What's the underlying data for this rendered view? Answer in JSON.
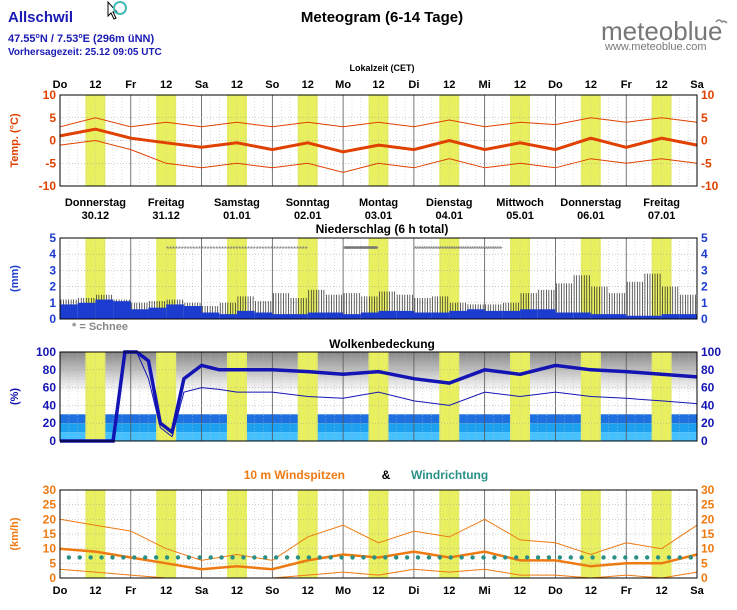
{
  "header": {
    "location": "Allschwil",
    "coords_lat": "47.55",
    "coords_lat_dir": "N",
    "coords_sep": " / ",
    "coords_lon": "7.53",
    "coords_lon_dir": "E",
    "coords_alt": " (296m üNN)",
    "deg": "o",
    "forecast_time": "Vorhersagezeit: 25.12 09:05 UTC",
    "title": "Meteogram (6-14 Tage)",
    "brand": "meteoblue",
    "brand_url": "www.meteoblue.com",
    "timezone_label": "Lokalzeit (CET)"
  },
  "colors": {
    "day_band": "#e8f060",
    "temp_line": "#e04000",
    "precip": "#1c3cd0",
    "cloud_line": "#1414b4",
    "wind_line": "#ee7a12",
    "wind_dir": "#2a9086",
    "title_blue": "#1a1ab4"
  },
  "time_axis": {
    "ticks": [
      "Do",
      "12",
      "Fr",
      "12",
      "Sa",
      "12",
      "So",
      "12",
      "Mo",
      "12",
      "Di",
      "12",
      "Mi",
      "12",
      "Do",
      "12",
      "Fr",
      "12",
      "Sa"
    ]
  },
  "days": [
    {
      "name": "Donnerstag",
      "date": "30.12"
    },
    {
      "name": "Freitag",
      "date": "31.12"
    },
    {
      "name": "Samstag",
      "date": "01.01"
    },
    {
      "name": "Sonntag",
      "date": "02.01"
    },
    {
      "name": "Montag",
      "date": "03.01"
    },
    {
      "name": "Dienstag",
      "date": "04.01"
    },
    {
      "name": "Mittwoch",
      "date": "05.01"
    },
    {
      "name": "Donnerstag",
      "date": "06.01"
    },
    {
      "name": "Freitag",
      "date": "07.01"
    }
  ],
  "chart_data": [
    {
      "type": "line",
      "name": "temperature",
      "ylabel": "Temp. (°C)",
      "ylim": [
        -10,
        10
      ],
      "yticks": [
        "10",
        "5",
        "0",
        "-5",
        "-10"
      ],
      "x_hours": [
        0,
        12,
        24,
        36,
        48,
        60,
        72,
        84,
        96,
        108,
        120,
        132,
        144,
        156,
        168,
        180,
        192,
        204,
        216
      ],
      "main": [
        1,
        2.5,
        0.5,
        -0.5,
        -1.5,
        -0.5,
        -2,
        -0.5,
        -2.5,
        -1,
        -2,
        0,
        -2,
        -0.5,
        -2,
        0.5,
        -1.5,
        0.5,
        -1
      ],
      "upper": [
        3,
        5,
        3,
        4,
        3,
        4,
        3,
        4,
        3,
        4,
        3,
        4.5,
        3,
        4,
        3.5,
        5,
        4,
        5,
        4
      ],
      "lower": [
        -1,
        0,
        -2,
        -5,
        -6,
        -5,
        -6,
        -5,
        -7,
        -5,
        -6,
        -4,
        -6,
        -5,
        -6,
        -4,
        -5,
        -4,
        -5
      ],
      "min_max_band": [
        -10,
        10
      ]
    },
    {
      "type": "bar",
      "name": "precipitation",
      "title": "Niederschlag (6 h total)",
      "ylabel": "(mm)",
      "ylim": [
        0,
        5
      ],
      "yticks": [
        "5",
        "4",
        "3",
        "2",
        "1",
        "0"
      ],
      "snow_note": "* = Schnee",
      "values_mean": [
        0.9,
        1.0,
        1.2,
        1.1,
        0.6,
        0.7,
        0.9,
        0.8,
        0.4,
        0.3,
        0.5,
        0.4,
        0.3,
        0.3,
        0.4,
        0.4,
        0.3,
        0.4,
        0.5,
        0.5,
        0.4,
        0.4,
        0.5,
        0.6,
        0.5,
        0.5,
        0.6,
        0.6,
        0.4,
        0.4,
        0.3,
        0.3,
        0.2,
        0.2,
        0.3,
        0.3
      ],
      "values_spread": [
        1.2,
        1.3,
        1.5,
        1.2,
        1.0,
        1.1,
        1.2,
        1.0,
        0.8,
        1.0,
        1.4,
        1.1,
        1.6,
        1.3,
        1.8,
        1.5,
        1.6,
        1.4,
        1.7,
        1.5,
        1.3,
        1.4,
        1.0,
        0.9,
        0.9,
        1.0,
        1.6,
        1.8,
        2.2,
        2.7,
        2.0,
        1.6,
        2.3,
        2.8,
        2.0,
        1.5
      ],
      "snow_spans": [
        [
          36,
          84
        ],
        [
          96,
          108
        ],
        [
          120,
          150
        ]
      ]
    },
    {
      "type": "line",
      "name": "cloud cover",
      "title": "Wolkenbedeckung",
      "ylabel": "(%)",
      "ylim": [
        0,
        100
      ],
      "yticks": [
        "100",
        "80",
        "60",
        "40",
        "20",
        "0"
      ],
      "x_hours": [
        0,
        6,
        10,
        14,
        18,
        22,
        26,
        30,
        34,
        38,
        42,
        48,
        54,
        60,
        72,
        84,
        96,
        108,
        120,
        132,
        144,
        156,
        168,
        180,
        192,
        204,
        216
      ],
      "total": [
        0,
        0,
        0,
        0,
        0,
        100,
        100,
        90,
        20,
        10,
        70,
        85,
        80,
        80,
        80,
        78,
        75,
        78,
        70,
        65,
        80,
        75,
        85,
        80,
        78,
        75,
        72
      ],
      "high": [
        0,
        0,
        0,
        0,
        0,
        100,
        100,
        70,
        15,
        5,
        55,
        60,
        58,
        55,
        55,
        50,
        48,
        55,
        45,
        40,
        55,
        50,
        55,
        50,
        48,
        45,
        42
      ],
      "low_band": [
        30,
        30,
        30,
        30,
        30,
        30,
        30,
        30,
        30,
        30,
        30,
        30,
        30,
        30,
        30,
        30,
        30,
        30,
        30,
        30,
        30,
        30,
        30,
        30,
        30,
        30,
        30
      ]
    },
    {
      "type": "line",
      "name": "wind",
      "title_gust": "10 m Windspitzen",
      "title_amp": "&",
      "title_dir": "Windrichtung",
      "ylabel": "(km/h)",
      "ylim": [
        0,
        30
      ],
      "yticks": [
        "30",
        "25",
        "20",
        "15",
        "10",
        "5",
        "0"
      ],
      "x_hours": [
        0,
        12,
        24,
        36,
        48,
        60,
        72,
        84,
        96,
        108,
        120,
        132,
        144,
        156,
        168,
        180,
        192,
        204,
        216
      ],
      "gust_upper": [
        20,
        18,
        16,
        10,
        6,
        8,
        6,
        14,
        18,
        12,
        16,
        14,
        20,
        13,
        12,
        8,
        12,
        10,
        18
      ],
      "gust_mid": [
        10,
        9,
        7,
        5,
        3,
        4,
        3,
        6,
        8,
        7,
        9,
        7,
        9,
        6,
        6,
        4,
        5,
        5,
        8
      ],
      "gust_lower": [
        3,
        2,
        1,
        0,
        0,
        0,
        0,
        1,
        2,
        1,
        3,
        2,
        3,
        1,
        1,
        0,
        1,
        0,
        2
      ],
      "direction_level": 7
    }
  ]
}
